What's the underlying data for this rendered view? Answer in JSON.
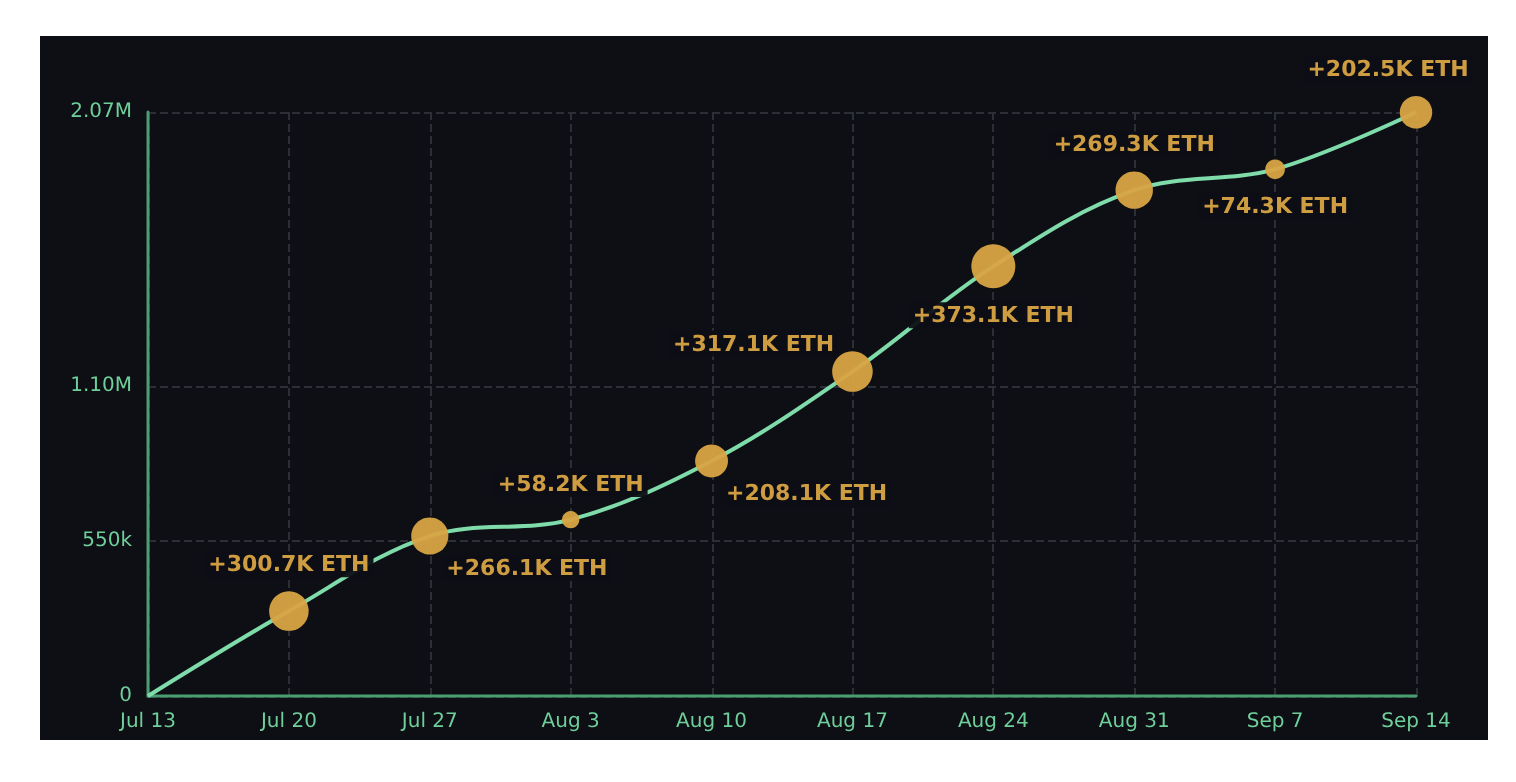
{
  "chart_data": {
    "type": "line",
    "categories": [
      "Jul 13",
      "Jul 20",
      "Jul 27",
      "Aug 3",
      "Aug 10",
      "Aug 17",
      "Aug 24",
      "Aug 31",
      "Sep 7",
      "Sep 14"
    ],
    "series": [
      {
        "color": "#7fdcaa",
        "marker": "none",
        "values": [
          0,
          301000,
          567000,
          625000,
          833000,
          1150000,
          1523000,
          1793000,
          1867000,
          2069000
        ]
      },
      {
        "type": "bubble",
        "color": "#d9a443",
        "values": [
          null,
          301000,
          567000,
          625000,
          833000,
          1150000,
          1523000,
          1793000,
          1867000,
          2069000
        ],
        "sizes": [
          null,
          0.806,
          0.713,
          0.156,
          0.558,
          0.85,
          1,
          0.722,
          0.199,
          0.543
        ]
      }
    ],
    "annotations": [
      {
        "text": "+300.7K ETH",
        "x": "Jul 20",
        "y": 301000
      },
      {
        "text": "+266.1K ETH",
        "x": "Jul 27",
        "y": 567000
      },
      {
        "text": "+58.2K ETH",
        "x": "Aug 3",
        "y": 625000
      },
      {
        "text": "+208.1K ETH",
        "x": "Aug 10",
        "y": 833000
      },
      {
        "text": "+317.1K ETH",
        "x": "Aug 17",
        "y": 1150000
      },
      {
        "text": "+373.1K ETH",
        "x": "Aug 24",
        "y": 1523000
      },
      {
        "text": "+269.3K ETH",
        "x": "Aug 31",
        "y": 1793000
      },
      {
        "text": "+74.3K ETH",
        "x": "Sep 7",
        "y": 1867000
      },
      {
        "text": "+202.5K ETH",
        "x": "Sep 14",
        "y": 2069000
      }
    ],
    "ylim": [
      0,
      2070000
    ],
    "yticks": [
      0,
      {
        "value": 550000,
        "label": "550k"
      },
      {
        "value": 1100000,
        "label": "1.10M"
      },
      {
        "value": 2070000,
        "label": "2.07M"
      }
    ],
    "grid": true
  }
}
